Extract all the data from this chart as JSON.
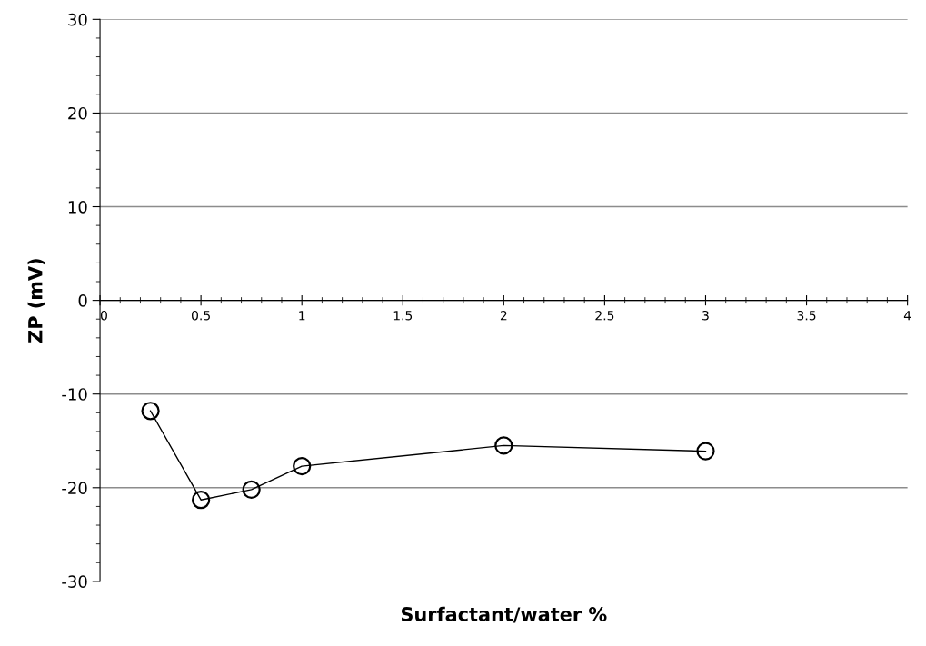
{
  "chart_data": {
    "type": "line",
    "xlabel": "Surfactant/water %",
    "ylabel": "ZP (mV)",
    "x": [
      0.25,
      0.5,
      0.75,
      1,
      2,
      3
    ],
    "series": [
      {
        "color": "#000000",
        "values": [
          -11.8,
          -21.3,
          -20.2,
          -17.7,
          -15.5,
          -16.1
        ]
      }
    ],
    "xlim": [
      0,
      4
    ],
    "xticks": [
      0,
      0.5,
      1,
      1.5,
      2,
      2.5,
      3,
      3.5,
      4
    ],
    "ylim": [
      -30,
      30
    ],
    "yticks": [
      -30,
      -20,
      -10,
      0,
      10,
      20,
      30
    ],
    "grid": "y",
    "marker": "circle",
    "line_style": "solid"
  }
}
